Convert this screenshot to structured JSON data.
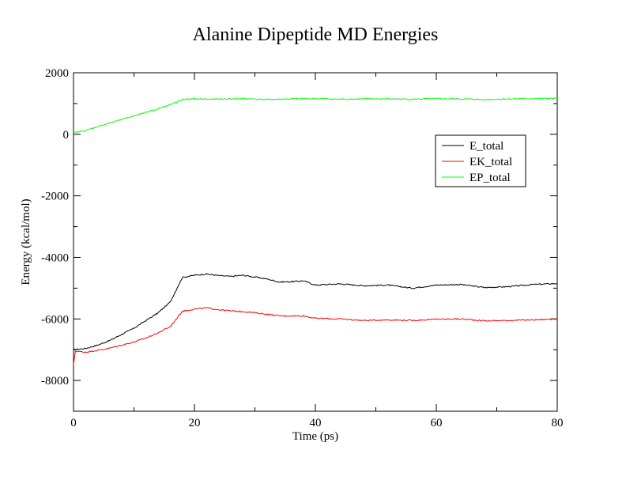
{
  "chart_data": {
    "type": "line",
    "title": "Alanine Dipeptide MD Energies",
    "xlabel": "Time (ps)",
    "ylabel": "Energy (kcal/mol)",
    "xlim": [
      0,
      80
    ],
    "ylim": [
      -9000,
      2000
    ],
    "x_ticks": [
      0,
      20,
      40,
      60,
      80
    ],
    "y_ticks": [
      -8000,
      -6000,
      -4000,
      -2000,
      0,
      2000
    ],
    "grid": false,
    "legend_position": "upper-right",
    "series": [
      {
        "name": "E_total",
        "color": "#000000",
        "points": [
          [
            0,
            -7000
          ],
          [
            2,
            -6960
          ],
          [
            4,
            -6850
          ],
          [
            6,
            -6700
          ],
          [
            8,
            -6500
          ],
          [
            10,
            -6300
          ],
          [
            12,
            -6050
          ],
          [
            14,
            -5800
          ],
          [
            16,
            -5450
          ],
          [
            18,
            -4650
          ],
          [
            20,
            -4580
          ],
          [
            22,
            -4540
          ],
          [
            24,
            -4590
          ],
          [
            26,
            -4620
          ],
          [
            28,
            -4580
          ],
          [
            30,
            -4640
          ],
          [
            32,
            -4700
          ],
          [
            34,
            -4800
          ],
          [
            36,
            -4790
          ],
          [
            38,
            -4760
          ],
          [
            40,
            -4900
          ],
          [
            44,
            -4860
          ],
          [
            48,
            -4920
          ],
          [
            52,
            -4900
          ],
          [
            56,
            -5000
          ],
          [
            60,
            -4900
          ],
          [
            64,
            -4880
          ],
          [
            68,
            -4980
          ],
          [
            72,
            -4950
          ],
          [
            76,
            -4880
          ],
          [
            80,
            -4850
          ]
        ]
      },
      {
        "name": "EK_total",
        "color": "#ff0000",
        "points": [
          [
            0,
            -7500
          ],
          [
            0.3,
            -7050
          ],
          [
            2,
            -7080
          ],
          [
            4,
            -7020
          ],
          [
            6,
            -6950
          ],
          [
            8,
            -6850
          ],
          [
            10,
            -6750
          ],
          [
            12,
            -6620
          ],
          [
            14,
            -6450
          ],
          [
            16,
            -6250
          ],
          [
            18,
            -5750
          ],
          [
            20,
            -5680
          ],
          [
            22,
            -5640
          ],
          [
            24,
            -5700
          ],
          [
            26,
            -5740
          ],
          [
            28,
            -5760
          ],
          [
            30,
            -5800
          ],
          [
            34,
            -5900
          ],
          [
            38,
            -5900
          ],
          [
            40,
            -5980
          ],
          [
            44,
            -6000
          ],
          [
            48,
            -6050
          ],
          [
            52,
            -6030
          ],
          [
            56,
            -6050
          ],
          [
            60,
            -6010
          ],
          [
            64,
            -6000
          ],
          [
            68,
            -6060
          ],
          [
            72,
            -6050
          ],
          [
            76,
            -6030
          ],
          [
            80,
            -6000
          ]
        ]
      },
      {
        "name": "EP_total",
        "color": "#00ff00",
        "points": [
          [
            0,
            50
          ],
          [
            2,
            120
          ],
          [
            4,
            250
          ],
          [
            6,
            370
          ],
          [
            8,
            480
          ],
          [
            10,
            600
          ],
          [
            12,
            720
          ],
          [
            14,
            830
          ],
          [
            16,
            960
          ],
          [
            18,
            1130
          ],
          [
            20,
            1150
          ],
          [
            24,
            1140
          ],
          [
            28,
            1160
          ],
          [
            32,
            1130
          ],
          [
            36,
            1150
          ],
          [
            40,
            1160
          ],
          [
            44,
            1140
          ],
          [
            48,
            1150
          ],
          [
            52,
            1150
          ],
          [
            56,
            1140
          ],
          [
            60,
            1160
          ],
          [
            64,
            1150
          ],
          [
            68,
            1130
          ],
          [
            72,
            1150
          ],
          [
            76,
            1160
          ],
          [
            80,
            1170
          ]
        ]
      }
    ]
  }
}
